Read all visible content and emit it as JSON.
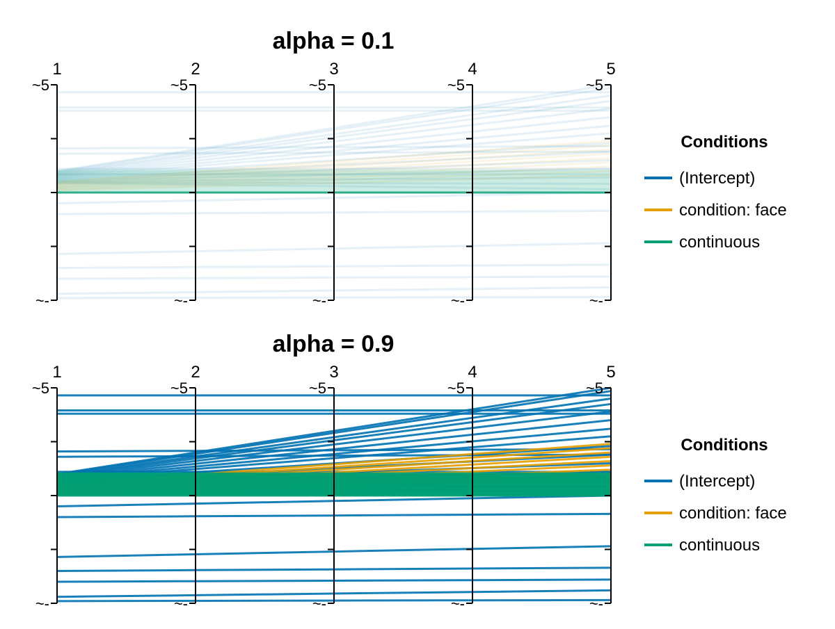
{
  "chart_data": [
    {
      "type": "parallel-coordinates",
      "title": "alpha = 0.1",
      "line_alpha": 0.1,
      "axes": [
        "1",
        "2",
        "3",
        "4",
        "5"
      ],
      "axis_top_label": "~5",
      "axis_bottom_label": "~-",
      "ylim": [
        -1,
        1
      ],
      "legend_title": "Conditions",
      "legend_placement": "right",
      "series": [
        {
          "name": "(Intercept)",
          "color": "#0072B2"
        },
        {
          "name": "condition: face",
          "color": "#E69F00"
        },
        {
          "name": "continuous",
          "color": "#009E73"
        }
      ]
    },
    {
      "type": "parallel-coordinates",
      "title": "alpha = 0.9",
      "line_alpha": 0.9,
      "axes": [
        "1",
        "2",
        "3",
        "4",
        "5"
      ],
      "axis_top_label": "~5",
      "axis_bottom_label": "~-",
      "ylim": [
        -1,
        1
      ],
      "legend_title": "Conditions",
      "legend_placement": "right",
      "series": [
        {
          "name": "(Intercept)",
          "color": "#0072B2"
        },
        {
          "name": "condition: face",
          "color": "#E69F00"
        },
        {
          "name": "continuous",
          "color": "#009E73"
        }
      ]
    }
  ]
}
